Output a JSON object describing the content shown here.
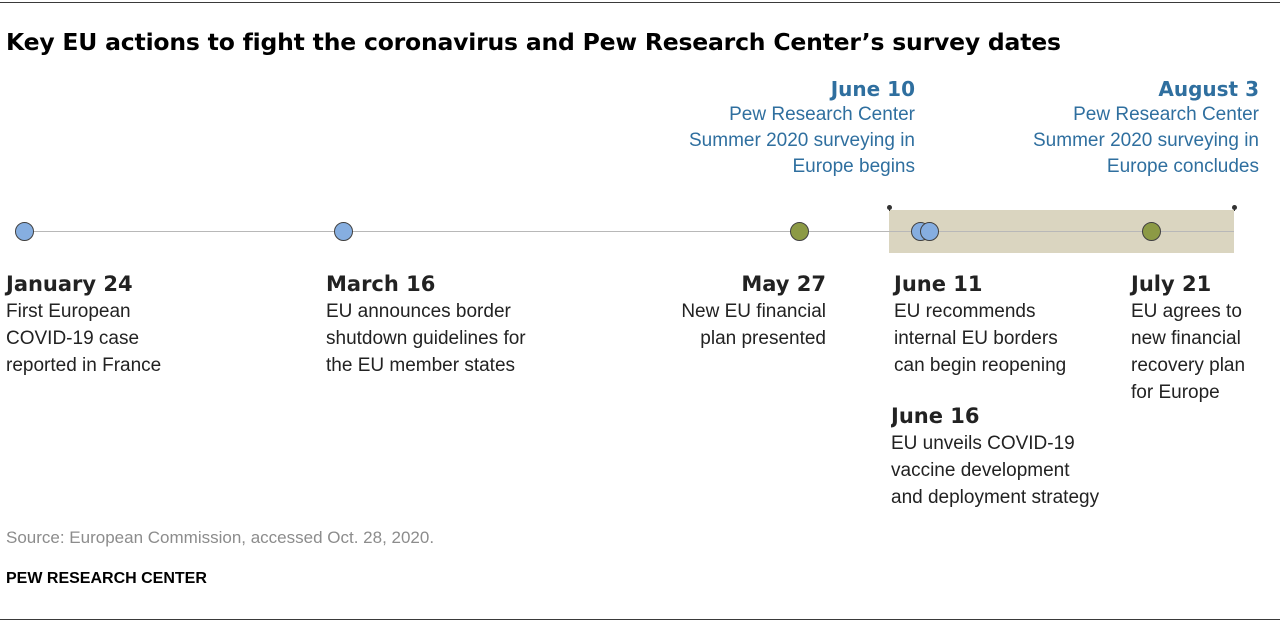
{
  "title": "Key EU actions to fight the coronavirus and Pew Research Center’s survey dates",
  "colors": {
    "event_blue": "#86aee0",
    "event_olive": "#8c9a45",
    "survey_text": "#2f6f9f",
    "survey_band": "#dad5c0"
  },
  "survey": [
    {
      "date": "June 10",
      "text": "Pew Research Center\nSummer 2020 surveying in\nEurope begins"
    },
    {
      "date": "August 3",
      "text": "Pew Research Center\nSummer 2020 surveying in\nEurope concludes"
    }
  ],
  "events": [
    {
      "date": "January 24",
      "text": "First European\nCOVID-19 case\nreported in France",
      "color": "#86aee0"
    },
    {
      "date": "March 16",
      "text": "EU announces border\nshutdown guidelines for\nthe EU member states",
      "color": "#86aee0"
    },
    {
      "date": "May 27",
      "text": "New EU financial\nplan presented",
      "color": "#8c9a45"
    },
    {
      "date": "June 11",
      "text": "EU recommends\ninternal EU borders\ncan begin reopening",
      "color": "#86aee0"
    },
    {
      "date": "June 16",
      "text": "EU unveils COVID-19\nvaccine development\nand deployment strategy",
      "color": "#86aee0"
    },
    {
      "date": "July 21",
      "text": "EU agrees to\nnew financial\nrecovery plan\nfor Europe",
      "color": "#8c9a45"
    }
  ],
  "source": "Source: European Commission, accessed Oct. 28, 2020.",
  "organization": "PEW RESEARCH CENTER"
}
